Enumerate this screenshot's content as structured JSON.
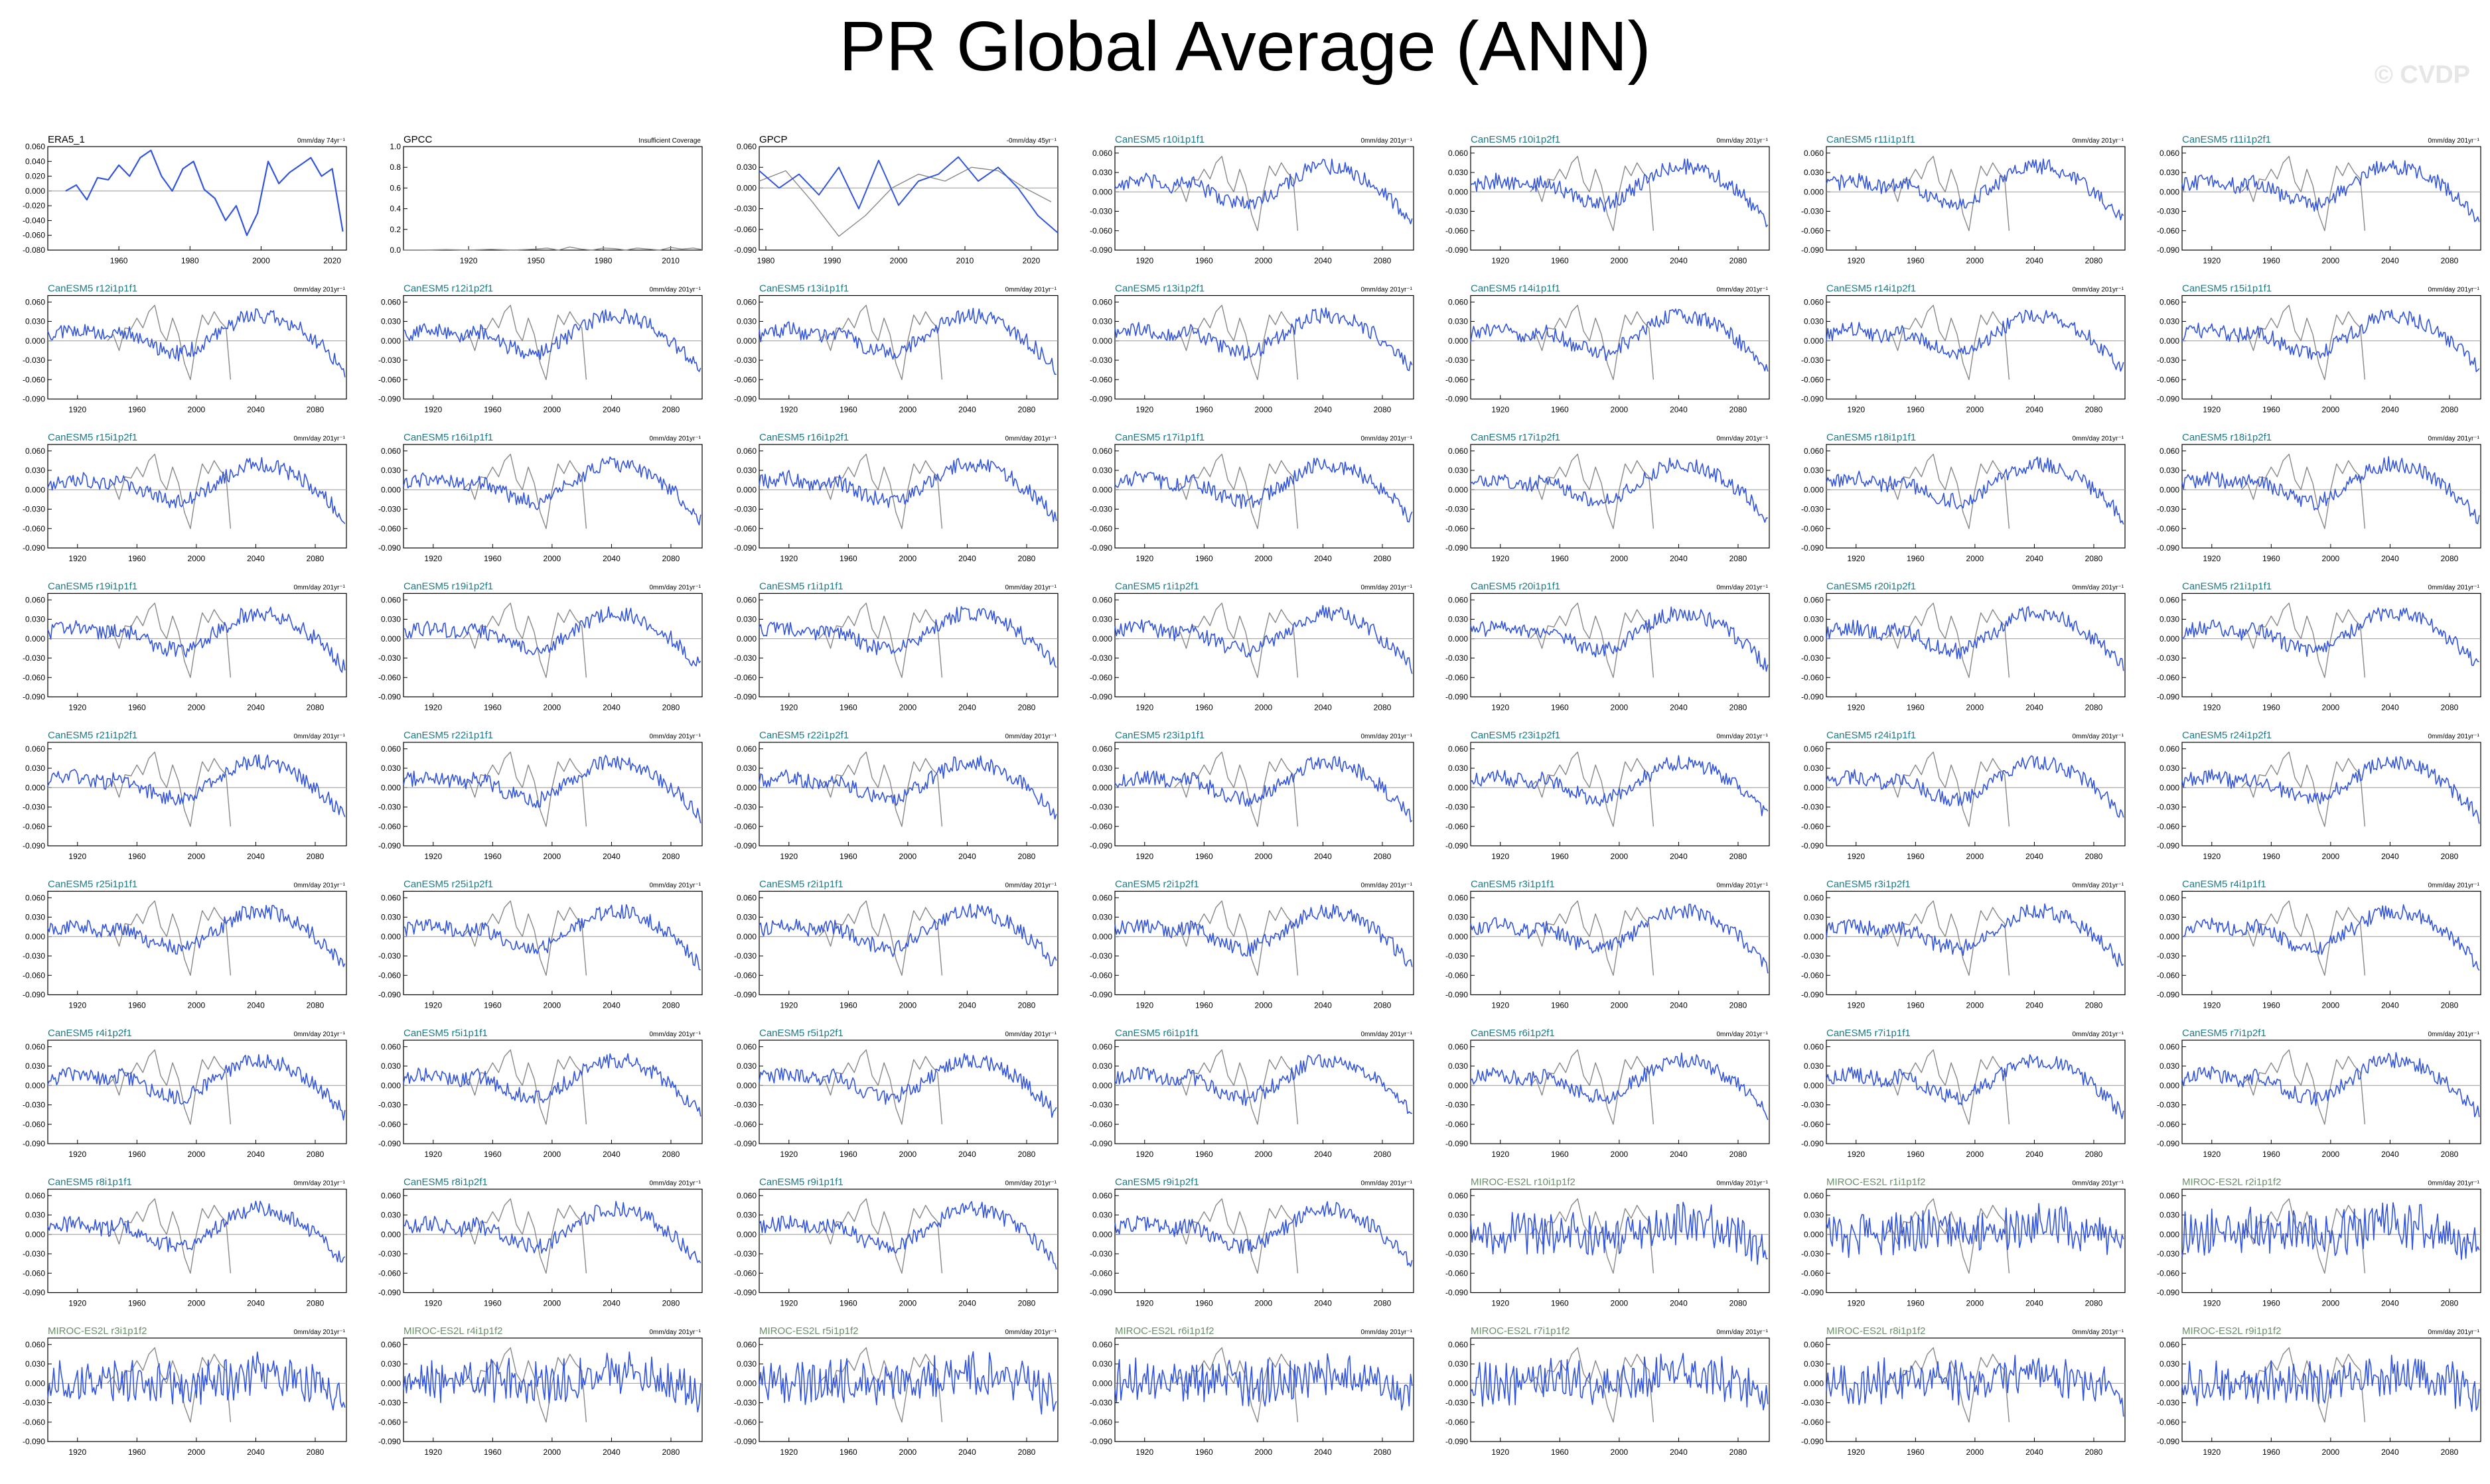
{
  "title": "PR Global Average (ANN)",
  "watermark": "© CVDP",
  "colors": {
    "model": "#3355dd",
    "obs": "#888888",
    "title_canesm": "#1a7a8a",
    "title_miroc": "#6b8f6b",
    "title_obs": "#000000",
    "zero": "#999999"
  },
  "chart_data": {
    "type": "line",
    "layout": {
      "columns": 7,
      "rows": 9
    },
    "panels": [
      {
        "name": "ERA5_1",
        "trend": "0mm/day 74yr⁻¹",
        "kind": "era5",
        "xlim": [
          1940,
          2024
        ],
        "xticks": [
          1960,
          1980,
          2000,
          2020
        ],
        "ylim": [
          -0.08,
          0.06
        ],
        "yticks": [
          -0.08,
          -0.06,
          -0.04,
          -0.02,
          0.0,
          0.02,
          0.04,
          0.06
        ],
        "ytick_labels": [
          "-0.080",
          "-0.060",
          "-0.040",
          "-0.020",
          "0.000",
          "0.020",
          "0.040",
          "0.060"
        ],
        "x": [
          1945,
          1948,
          1951,
          1954,
          1957,
          1960,
          1963,
          1966,
          1969,
          1972,
          1975,
          1978,
          1981,
          1984,
          1987,
          1990,
          1993,
          1996,
          1999,
          2002,
          2005,
          2008,
          2011,
          2014,
          2017,
          2020,
          2023
        ],
        "y": [
          0.0,
          0.008,
          -0.012,
          0.018,
          0.015,
          0.035,
          0.02,
          0.045,
          0.055,
          0.02,
          0.0,
          0.03,
          0.04,
          0.002,
          -0.01,
          -0.04,
          -0.02,
          -0.06,
          -0.03,
          0.04,
          0.01,
          0.025,
          0.035,
          0.045,
          0.02,
          0.03,
          -0.055
        ]
      },
      {
        "name": "GPCC",
        "trend": "Insufficient Coverage",
        "kind": "gpcc",
        "xlim": [
          1891,
          2024
        ],
        "xticks": [
          1920,
          1950,
          1980,
          2010
        ],
        "ylim": [
          0.0,
          1.0
        ],
        "yticks": [
          0.0,
          0.2,
          0.4,
          0.6,
          0.8,
          1.0
        ],
        "ytick_labels": [
          "0.0",
          "0.2",
          "0.4",
          "0.6",
          "0.8",
          "1.0"
        ],
        "x": [
          1891,
          1900,
          1910,
          1920,
          1930,
          1940,
          1950,
          1955,
          1960,
          1965,
          1970,
          1975,
          1980,
          1985,
          1990,
          1995,
          2000,
          2005,
          2010,
          2015,
          2020,
          2024
        ],
        "y": [
          0.0,
          0.0,
          0.005,
          0.0,
          0.008,
          0.0,
          0.01,
          0.02,
          0.0,
          0.03,
          0.01,
          0.0,
          0.02,
          0.015,
          0.0,
          0.02,
          0.01,
          0.0,
          0.025,
          0.01,
          0.02,
          0.005
        ]
      },
      {
        "name": "GPCP",
        "trend": "-0mm/day 45yr⁻¹",
        "kind": "gpcp",
        "xlim": [
          1979,
          2024
        ],
        "xticks": [
          1980,
          1990,
          2000,
          2010,
          2020
        ],
        "ylim": [
          -0.09,
          0.06
        ],
        "yticks": [
          -0.09,
          -0.06,
          -0.03,
          0.0,
          0.03,
          0.06
        ],
        "ytick_labels": [
          "-0.090",
          "-0.060",
          "-0.030",
          "0.000",
          "0.030",
          "0.060"
        ],
        "x": [
          1979,
          1982,
          1985,
          1988,
          1991,
          1994,
          1997,
          2000,
          2003,
          2006,
          2009,
          2012,
          2015,
          2018,
          2021,
          2024
        ],
        "y": [
          0.025,
          0.0,
          0.02,
          -0.01,
          0.03,
          -0.03,
          0.04,
          -0.025,
          0.01,
          0.02,
          0.045,
          0.01,
          0.03,
          0.0,
          -0.04,
          -0.065
        ],
        "x2": [
          1979,
          1983,
          1987,
          1991,
          1995,
          1999,
          2003,
          2007,
          2011,
          2015,
          2019,
          2023
        ],
        "y2": [
          0.01,
          0.025,
          -0.02,
          -0.07,
          -0.04,
          0.0,
          0.02,
          0.01,
          0.03,
          0.025,
          0.0,
          -0.02
        ]
      },
      {
        "name": "CanESM5 r10i1p1f1",
        "trend": "0mm/day 201yr⁻¹",
        "kind": "canesm"
      },
      {
        "name": "CanESM5 r10i1p2f1",
        "trend": "0mm/day 201yr⁻¹",
        "kind": "canesm"
      },
      {
        "name": "CanESM5 r11i1p1f1",
        "trend": "0mm/day 201yr⁻¹",
        "kind": "canesm"
      },
      {
        "name": "CanESM5 r11i1p2f1",
        "trend": "0mm/day 201yr⁻¹",
        "kind": "canesm"
      },
      {
        "name": "CanESM5 r12i1p1f1",
        "trend": "0mm/day 201yr⁻¹",
        "kind": "canesm"
      },
      {
        "name": "CanESM5 r12i1p2f1",
        "trend": "0mm/day 201yr⁻¹",
        "kind": "canesm"
      },
      {
        "name": "CanESM5 r13i1p1f1",
        "trend": "0mm/day 201yr⁻¹",
        "kind": "canesm"
      },
      {
        "name": "CanESM5 r13i1p2f1",
        "trend": "0mm/day 201yr⁻¹",
        "kind": "canesm"
      },
      {
        "name": "CanESM5 r14i1p1f1",
        "trend": "0mm/day 201yr⁻¹",
        "kind": "canesm"
      },
      {
        "name": "CanESM5 r14i1p2f1",
        "trend": "0mm/day 201yr⁻¹",
        "kind": "canesm"
      },
      {
        "name": "CanESM5 r15i1p1f1",
        "trend": "0mm/day 201yr⁻¹",
        "kind": "canesm"
      },
      {
        "name": "CanESM5 r15i1p2f1",
        "trend": "0mm/day 201yr⁻¹",
        "kind": "canesm"
      },
      {
        "name": "CanESM5 r16i1p1f1",
        "trend": "0mm/day 201yr⁻¹",
        "kind": "canesm"
      },
      {
        "name": "CanESM5 r16i1p2f1",
        "trend": "0mm/day 201yr⁻¹",
        "kind": "canesm"
      },
      {
        "name": "CanESM5 r17i1p1f1",
        "trend": "0mm/day 201yr⁻¹",
        "kind": "canesm"
      },
      {
        "name": "CanESM5 r17i1p2f1",
        "trend": "0mm/day 201yr⁻¹",
        "kind": "canesm"
      },
      {
        "name": "CanESM5 r18i1p1f1",
        "trend": "0mm/day 201yr⁻¹",
        "kind": "canesm"
      },
      {
        "name": "CanESM5 r18i1p2f1",
        "trend": "0mm/day 201yr⁻¹",
        "kind": "canesm"
      },
      {
        "name": "CanESM5 r19i1p1f1",
        "trend": "0mm/day 201yr⁻¹",
        "kind": "canesm"
      },
      {
        "name": "CanESM5 r19i1p2f1",
        "trend": "0mm/day 201yr⁻¹",
        "kind": "canesm"
      },
      {
        "name": "CanESM5 r1i1p1f1",
        "trend": "0mm/day 201yr⁻¹",
        "kind": "canesm"
      },
      {
        "name": "CanESM5 r1i1p2f1",
        "trend": "0mm/day 201yr⁻¹",
        "kind": "canesm"
      },
      {
        "name": "CanESM5 r20i1p1f1",
        "trend": "0mm/day 201yr⁻¹",
        "kind": "canesm"
      },
      {
        "name": "CanESM5 r20i1p2f1",
        "trend": "0mm/day 201yr⁻¹",
        "kind": "canesm"
      },
      {
        "name": "CanESM5 r21i1p1f1",
        "trend": "0mm/day 201yr⁻¹",
        "kind": "canesm"
      },
      {
        "name": "CanESM5 r21i1p2f1",
        "trend": "0mm/day 201yr⁻¹",
        "kind": "canesm"
      },
      {
        "name": "CanESM5 r22i1p1f1",
        "trend": "0mm/day 201yr⁻¹",
        "kind": "canesm"
      },
      {
        "name": "CanESM5 r22i1p2f1",
        "trend": "0mm/day 201yr⁻¹",
        "kind": "canesm"
      },
      {
        "name": "CanESM5 r23i1p1f1",
        "trend": "0mm/day 201yr⁻¹",
        "kind": "canesm"
      },
      {
        "name": "CanESM5 r23i1p2f1",
        "trend": "0mm/day 201yr⁻¹",
        "kind": "canesm"
      },
      {
        "name": "CanESM5 r24i1p1f1",
        "trend": "0mm/day 201yr⁻¹",
        "kind": "canesm"
      },
      {
        "name": "CanESM5 r24i1p2f1",
        "trend": "0mm/day 201yr⁻¹",
        "kind": "canesm"
      },
      {
        "name": "CanESM5 r25i1p1f1",
        "trend": "0mm/day 201yr⁻¹",
        "kind": "canesm"
      },
      {
        "name": "CanESM5 r25i1p2f1",
        "trend": "0mm/day 201yr⁻¹",
        "kind": "canesm"
      },
      {
        "name": "CanESM5 r2i1p1f1",
        "trend": "0mm/day 201yr⁻¹",
        "kind": "canesm"
      },
      {
        "name": "CanESM5 r2i1p2f1",
        "trend": "0mm/day 201yr⁻¹",
        "kind": "canesm"
      },
      {
        "name": "CanESM5 r3i1p1f1",
        "trend": "0mm/day 201yr⁻¹",
        "kind": "canesm"
      },
      {
        "name": "CanESM5 r3i1p2f1",
        "trend": "0mm/day 201yr⁻¹",
        "kind": "canesm"
      },
      {
        "name": "CanESM5 r4i1p1f1",
        "trend": "0mm/day 201yr⁻¹",
        "kind": "canesm"
      },
      {
        "name": "CanESM5 r4i1p2f1",
        "trend": "0mm/day 201yr⁻¹",
        "kind": "canesm"
      },
      {
        "name": "CanESM5 r5i1p1f1",
        "trend": "0mm/day 201yr⁻¹",
        "kind": "canesm"
      },
      {
        "name": "CanESM5 r5i1p2f1",
        "trend": "0mm/day 201yr⁻¹",
        "kind": "canesm"
      },
      {
        "name": "CanESM5 r6i1p1f1",
        "trend": "0mm/day 201yr⁻¹",
        "kind": "canesm"
      },
      {
        "name": "CanESM5 r6i1p2f1",
        "trend": "0mm/day 201yr⁻¹",
        "kind": "canesm"
      },
      {
        "name": "CanESM5 r7i1p1f1",
        "trend": "0mm/day 201yr⁻¹",
        "kind": "canesm"
      },
      {
        "name": "CanESM5 r7i1p2f1",
        "trend": "0mm/day 201yr⁻¹",
        "kind": "canesm"
      },
      {
        "name": "CanESM5 r8i1p1f1",
        "trend": "0mm/day 201yr⁻¹",
        "kind": "canesm"
      },
      {
        "name": "CanESM5 r8i1p2f1",
        "trend": "0mm/day 201yr⁻¹",
        "kind": "canesm"
      },
      {
        "name": "CanESM5 r9i1p1f1",
        "trend": "0mm/day 201yr⁻¹",
        "kind": "canesm"
      },
      {
        "name": "CanESM5 r9i1p2f1",
        "trend": "0mm/day 201yr⁻¹",
        "kind": "canesm"
      },
      {
        "name": "MIROC-ES2L r10i1p1f2",
        "trend": "0mm/day 201yr⁻¹",
        "kind": "miroc"
      },
      {
        "name": "MIROC-ES2L r1i1p1f2",
        "trend": "0mm/day 201yr⁻¹",
        "kind": "miroc"
      },
      {
        "name": "MIROC-ES2L r2i1p1f2",
        "trend": "0mm/day 201yr⁻¹",
        "kind": "miroc"
      },
      {
        "name": "MIROC-ES2L r3i1p1f2",
        "trend": "0mm/day 201yr⁻¹",
        "kind": "miroc"
      },
      {
        "name": "MIROC-ES2L r4i1p1f2",
        "trend": "0mm/day 201yr⁻¹",
        "kind": "miroc"
      },
      {
        "name": "MIROC-ES2L r5i1p1f2",
        "trend": "0mm/day 201yr⁻¹",
        "kind": "miroc"
      },
      {
        "name": "MIROC-ES2L r6i1p1f2",
        "trend": "0mm/day 201yr⁻¹",
        "kind": "miroc"
      },
      {
        "name": "MIROC-ES2L r7i1p1f2",
        "trend": "0mm/day 201yr⁻¹",
        "kind": "miroc"
      },
      {
        "name": "MIROC-ES2L r8i1p1f2",
        "trend": "0mm/day 201yr⁻¹",
        "kind": "miroc"
      },
      {
        "name": "MIROC-ES2L r9i1p1f2",
        "trend": "0mm/day 201yr⁻¹",
        "kind": "miroc"
      }
    ],
    "model_axes": {
      "xlim": [
        1900,
        2101
      ],
      "xticks": [
        1920,
        1960,
        2000,
        2040,
        2080
      ],
      "ylim": [
        -0.09,
        0.07
      ],
      "yticks": [
        -0.09,
        -0.06,
        -0.03,
        0.0,
        0.03,
        0.06
      ],
      "ytick_labels": [
        "-0.090",
        "-0.060",
        "-0.030",
        "0.000",
        "0.030",
        "0.060"
      ]
    },
    "canesm_mean": {
      "x": [
        1900,
        1910,
        1920,
        1930,
        1940,
        1950,
        1960,
        1970,
        1980,
        1990,
        2000,
        2010,
        2020,
        2030,
        2040,
        2050,
        2060,
        2070,
        2080,
        2090,
        2100
      ],
      "y": [
        0.01,
        0.015,
        0.018,
        0.012,
        0.008,
        0.015,
        0.005,
        -0.008,
        -0.015,
        -0.02,
        -0.01,
        0.005,
        0.02,
        0.035,
        0.04,
        0.038,
        0.03,
        0.018,
        0.0,
        -0.02,
        -0.045
      ]
    },
    "miroc_mean": {
      "x": [
        1900,
        1950,
        2000,
        2040,
        2060,
        2080,
        2100
      ],
      "y": [
        0.0,
        0.005,
        0.0,
        0.015,
        0.012,
        0.0,
        -0.02
      ]
    },
    "obs_overlay": {
      "x": [
        1940,
        1944,
        1948,
        1952,
        1956,
        1960,
        1964,
        1968,
        1972,
        1976,
        1980,
        1984,
        1988,
        1992,
        1996,
        2000,
        2004,
        2008,
        2012,
        2016,
        2020,
        2023
      ],
      "y": [
        0.0,
        0.01,
        -0.015,
        0.02,
        0.018,
        0.035,
        0.02,
        0.045,
        0.055,
        0.015,
        0.0,
        0.035,
        0.01,
        -0.035,
        -0.06,
        0.0,
        0.04,
        0.025,
        0.045,
        0.03,
        0.02,
        -0.06
      ]
    }
  }
}
